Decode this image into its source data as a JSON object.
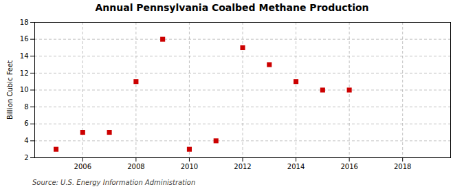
{
  "chart_data": {
    "type": "scatter",
    "title": "Annual Pennsylvania Coalbed Methane Production",
    "ylabel": "Billion Cubic Feet",
    "annotation": "Source: U.S. Energy Information Administration",
    "x": [
      2005,
      2006,
      2007,
      2008,
      2009,
      2010,
      2011,
      2012,
      2013,
      2014,
      2015,
      2016
    ],
    "values": [
      3.0,
      5.0,
      5.0,
      11.0,
      16.0,
      3.0,
      4.0,
      15.0,
      13.0,
      11.0,
      10.0,
      10.0
    ],
    "color": "#cc0000",
    "marker": "square",
    "xlim": [
      2004.2,
      2019.8
    ],
    "xticks": [
      2006,
      2008,
      2010,
      2012,
      2014,
      2016,
      2018
    ],
    "ylim": [
      2,
      18
    ],
    "yticks": [
      2,
      4,
      6,
      8,
      10,
      12,
      14,
      16,
      18
    ],
    "grid": true
  }
}
